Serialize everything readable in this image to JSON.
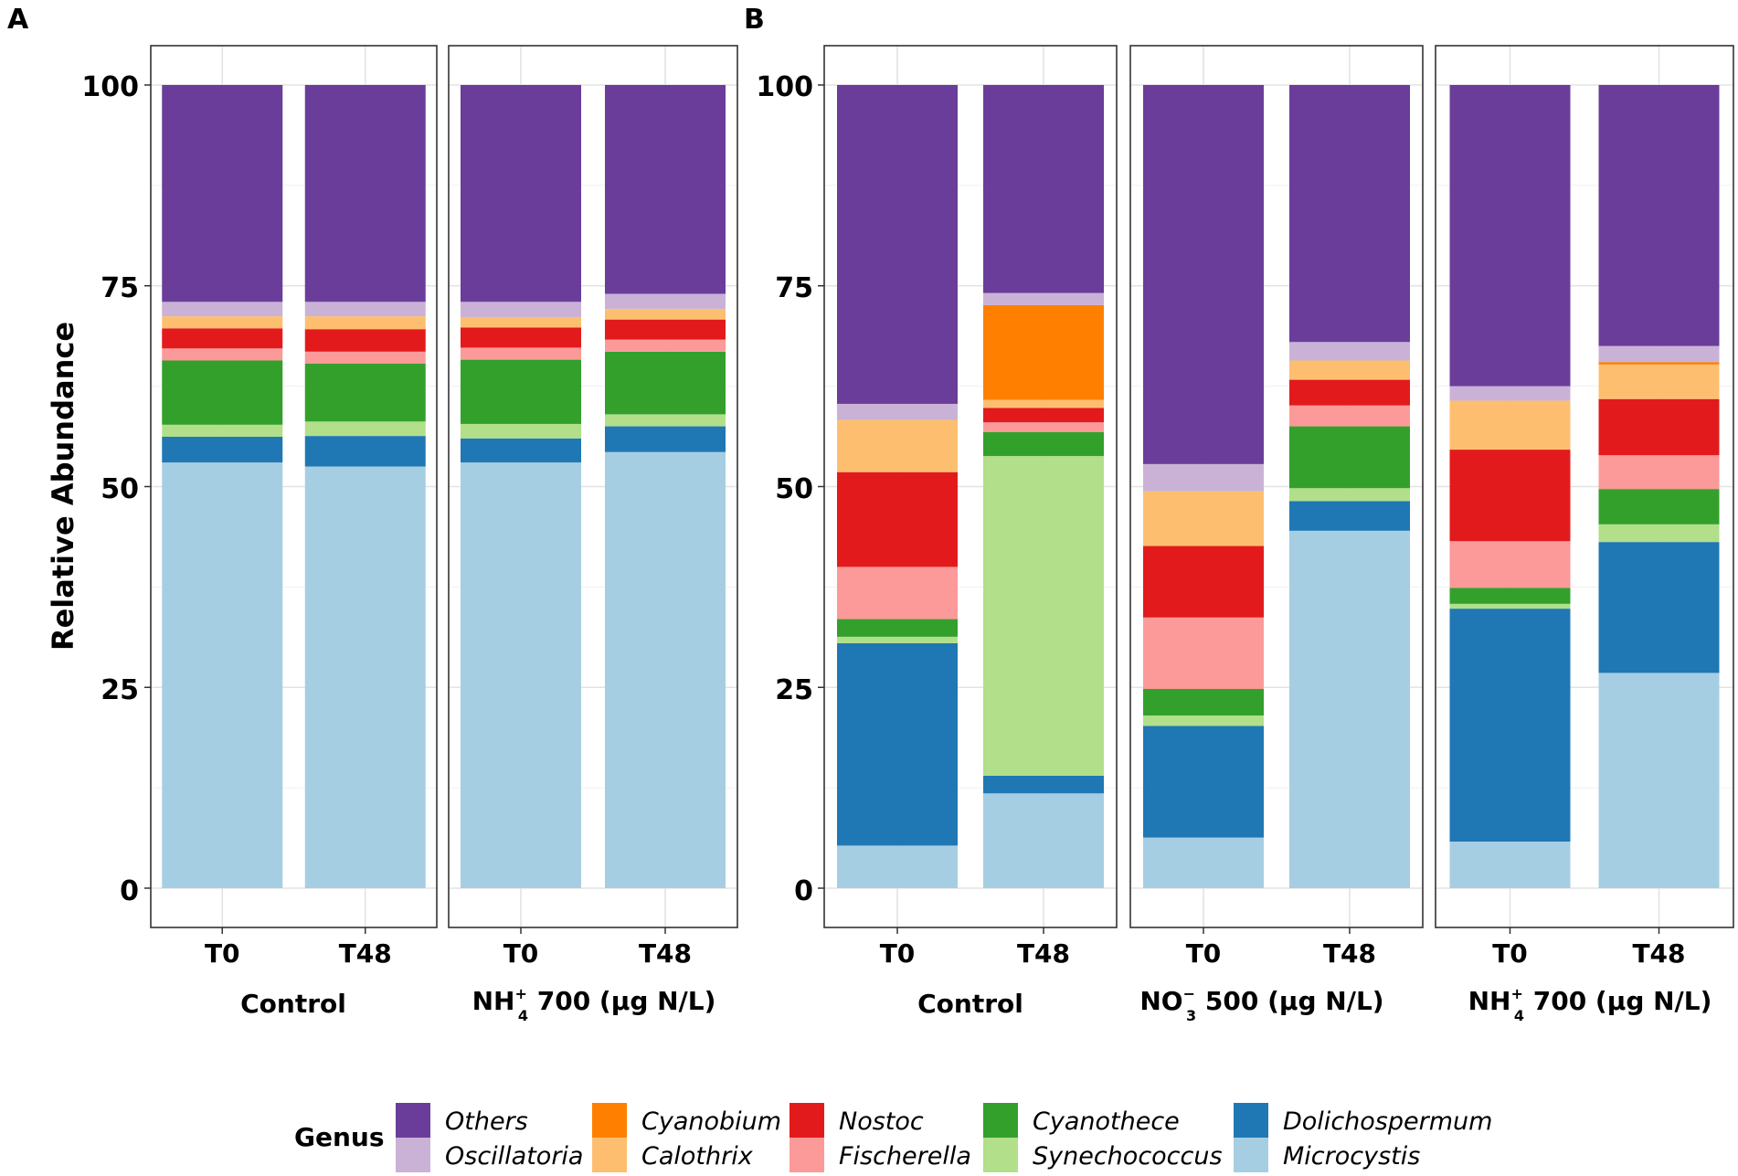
{
  "chart_data": {
    "type": "bar",
    "stacked": true,
    "ylabel": "Relative Abundance",
    "ylim": [
      0,
      100
    ],
    "yticks": [
      "0",
      "25",
      "50",
      "75",
      "100"
    ],
    "legend": {
      "title": "Genus",
      "placement": "bottom",
      "items": [
        {
          "name": "Others",
          "color": "#6a3d9a"
        },
        {
          "name": "Oscillatoria",
          "color": "#cab2d6"
        },
        {
          "name": "Cyanobium",
          "color": "#ff7f00"
        },
        {
          "name": "Calothrix",
          "color": "#fdbf6f"
        },
        {
          "name": "Nostoc",
          "color": "#e31a1c"
        },
        {
          "name": "Fischerella",
          "color": "#fb9a99"
        },
        {
          "name": "Cyanothece",
          "color": "#33a02c"
        },
        {
          "name": "Synechococcus",
          "color": "#b2df8a"
        },
        {
          "name": "Dolichospermum",
          "color": "#1f78b4"
        },
        {
          "name": "Microcystis",
          "color": "#a6cee3"
        }
      ]
    },
    "stack_order": [
      "Microcystis",
      "Dolichospermum",
      "Synechococcus",
      "Cyanothece",
      "Fischerella",
      "Nostoc",
      "Calothrix",
      "Cyanobium",
      "Oscillatoria",
      "Others"
    ],
    "panels": [
      {
        "letter": "A",
        "facets": [
          {
            "strip": "Control",
            "bars": [
              {
                "label": "T0",
                "values": {
                  "Microcystis": 53.0,
                  "Dolichospermum": 3.2,
                  "Synechococcus": 1.5,
                  "Cyanothece": 8.0,
                  "Fischerella": 1.5,
                  "Nostoc": 2.5,
                  "Calothrix": 1.5,
                  "Cyanobium": 0.0,
                  "Oscillatoria": 1.8,
                  "Others": 27.0
                }
              },
              {
                "label": "T48",
                "values": {
                  "Microcystis": 52.5,
                  "Dolichospermum": 3.8,
                  "Synechococcus": 1.8,
                  "Cyanothece": 7.2,
                  "Fischerella": 1.5,
                  "Nostoc": 2.8,
                  "Calothrix": 1.6,
                  "Cyanobium": 0.0,
                  "Oscillatoria": 1.8,
                  "Others": 27.0
                }
              }
            ]
          },
          {
            "strip": "NH4+ 700 (µg N/L)",
            "strip_main": "NH",
            "strip_sub": "4",
            "strip_sup": "+",
            "strip_rest": " 700 (µg N/L)",
            "bars": [
              {
                "label": "T0",
                "values": {
                  "Microcystis": 53.0,
                  "Dolichospermum": 3.0,
                  "Synechococcus": 1.8,
                  "Cyanothece": 8.0,
                  "Fischerella": 1.5,
                  "Nostoc": 2.5,
                  "Calothrix": 1.3,
                  "Cyanobium": 0.0,
                  "Oscillatoria": 1.9,
                  "Others": 27.0
                }
              },
              {
                "label": "T48",
                "values": {
                  "Microcystis": 54.3,
                  "Dolichospermum": 3.2,
                  "Synechococcus": 1.5,
                  "Cyanothece": 7.8,
                  "Fischerella": 1.5,
                  "Nostoc": 2.5,
                  "Calothrix": 1.3,
                  "Cyanobium": 0.0,
                  "Oscillatoria": 1.9,
                  "Others": 26.0
                }
              }
            ]
          }
        ]
      },
      {
        "letter": "B",
        "facets": [
          {
            "strip": "Control",
            "bars": [
              {
                "label": "T0",
                "values": {
                  "Microcystis": 5.3,
                  "Dolichospermum": 25.2,
                  "Synechococcus": 0.8,
                  "Cyanothece": 2.2,
                  "Fischerella": 6.5,
                  "Nostoc": 11.8,
                  "Calothrix": 6.5,
                  "Cyanobium": 0.0,
                  "Oscillatoria": 2.0,
                  "Others": 39.7
                }
              },
              {
                "label": "T48",
                "values": {
                  "Microcystis": 11.8,
                  "Dolichospermum": 2.2,
                  "Synechococcus": 39.8,
                  "Cyanothece": 3.0,
                  "Fischerella": 1.2,
                  "Nostoc": 1.8,
                  "Calothrix": 1.0,
                  "Cyanobium": 11.8,
                  "Oscillatoria": 1.5,
                  "Others": 25.9
                }
              }
            ]
          },
          {
            "strip": "NO3- 500 (µg N/L)",
            "strip_main": "NO",
            "strip_sub": "3",
            "strip_sup": "−",
            "strip_rest": " 500 (µg N/L)",
            "bars": [
              {
                "label": "T0",
                "values": {
                  "Microcystis": 6.3,
                  "Dolichospermum": 13.9,
                  "Synechococcus": 1.3,
                  "Cyanothece": 3.3,
                  "Fischerella": 8.9,
                  "Nostoc": 8.9,
                  "Calothrix": 6.8,
                  "Cyanobium": 0.0,
                  "Oscillatoria": 3.4,
                  "Others": 47.2
                }
              },
              {
                "label": "T48",
                "values": {
                  "Microcystis": 44.5,
                  "Dolichospermum": 3.7,
                  "Synechococcus": 1.6,
                  "Cyanothece": 7.7,
                  "Fischerella": 2.6,
                  "Nostoc": 3.2,
                  "Calothrix": 2.4,
                  "Cyanobium": 0.0,
                  "Oscillatoria": 2.3,
                  "Others": 32.0
                }
              }
            ]
          },
          {
            "strip": "NH4+ 700 (µg N/L)",
            "strip_main": "NH",
            "strip_sub": "4",
            "strip_sup": "+",
            "strip_rest": " 700 (µg N/L)",
            "bars": [
              {
                "label": "T0",
                "values": {
                  "Microcystis": 5.8,
                  "Dolichospermum": 29.0,
                  "Synechococcus": 0.6,
                  "Cyanothece": 2.0,
                  "Fischerella": 5.8,
                  "Nostoc": 11.4,
                  "Calothrix": 6.1,
                  "Cyanobium": 0.0,
                  "Oscillatoria": 1.8,
                  "Others": 37.5
                }
              },
              {
                "label": "T48",
                "values": {
                  "Microcystis": 26.8,
                  "Dolichospermum": 16.3,
                  "Synechococcus": 2.2,
                  "Cyanothece": 4.4,
                  "Fischerella": 4.2,
                  "Nostoc": 7.0,
                  "Calothrix": 4.3,
                  "Cyanobium": 0.3,
                  "Oscillatoria": 2.0,
                  "Others": 32.5
                }
              }
            ]
          }
        ]
      }
    ]
  }
}
